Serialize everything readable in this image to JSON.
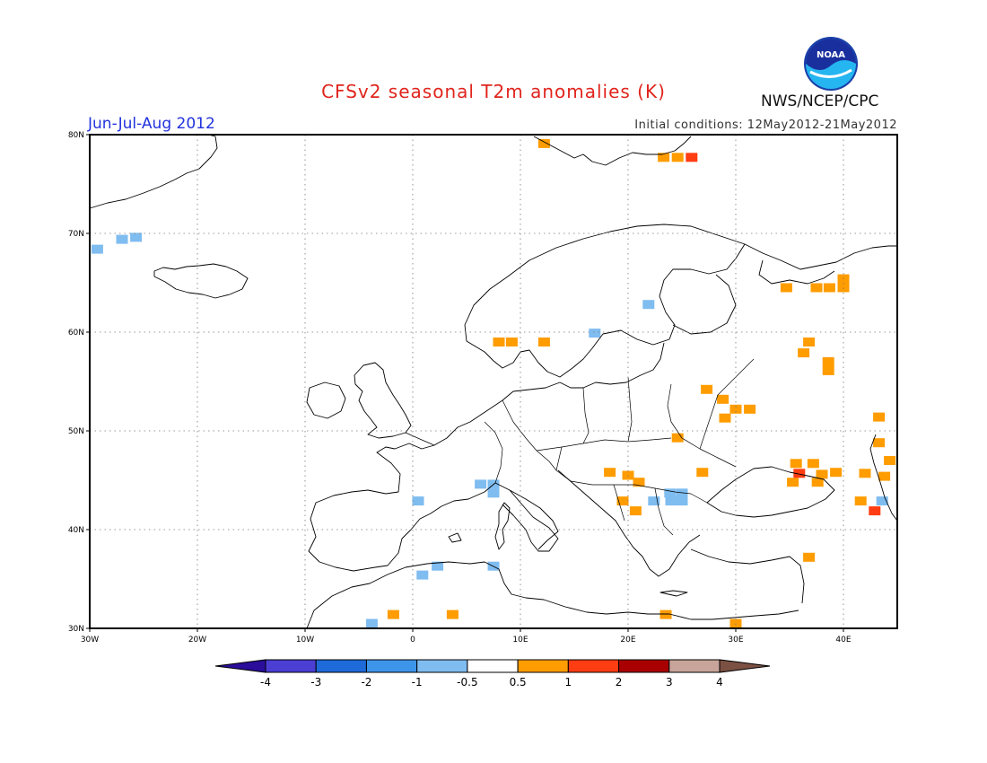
{
  "header": {
    "title": "CFSv2 seasonal T2m anomalies (K)",
    "period": "Jun-Jul-Aug 2012",
    "initial_conditions": "Initial conditions: 12May2012-21May2012",
    "agency": "NWS/NCEP/CPC"
  },
  "logo": {
    "text": "NOAA",
    "icon": "noaa-logo"
  },
  "map": {
    "lon_range": [
      -30,
      45
    ],
    "lat_range": [
      30,
      80
    ],
    "lon_ticks": [
      {
        "value": -30,
        "label": "30W"
      },
      {
        "value": -20,
        "label": "20W"
      },
      {
        "value": -10,
        "label": "10W"
      },
      {
        "value": 0,
        "label": "0"
      },
      {
        "value": 10,
        "label": "10E"
      },
      {
        "value": 20,
        "label": "20E"
      },
      {
        "value": 30,
        "label": "30E"
      },
      {
        "value": 40,
        "label": "40E"
      }
    ],
    "lat_ticks": [
      {
        "value": 30,
        "label": "30N"
      },
      {
        "value": 40,
        "label": "40N"
      },
      {
        "value": 50,
        "label": "50N"
      },
      {
        "value": 60,
        "label": "60N"
      },
      {
        "value": 70,
        "label": "70N"
      },
      {
        "value": 80,
        "label": "80N"
      }
    ],
    "grid": true,
    "anomaly_cells": [
      {
        "lon": -29.3,
        "lat": 68.4,
        "cat": "-1"
      },
      {
        "lon": -27.0,
        "lat": 69.4,
        "cat": "-1"
      },
      {
        "lon": -25.7,
        "lat": 69.6,
        "cat": "-1"
      },
      {
        "lon": 12.2,
        "lat": 79.1,
        "cat": "0.5"
      },
      {
        "lon": 23.3,
        "lat": 77.7,
        "cat": "0.5"
      },
      {
        "lon": 24.6,
        "lat": 77.7,
        "cat": "0.5"
      },
      {
        "lon": 25.9,
        "lat": 77.7,
        "cat": "1"
      },
      {
        "lon": 21.9,
        "lat": 62.8,
        "cat": "-1"
      },
      {
        "lon": 16.9,
        "lat": 59.9,
        "cat": "-1"
      },
      {
        "lon": 8.0,
        "lat": 59.0,
        "cat": "0.5"
      },
      {
        "lon": 9.2,
        "lat": 59.0,
        "cat": "0.5"
      },
      {
        "lon": 12.2,
        "lat": 59.0,
        "cat": "0.5"
      },
      {
        "lon": 34.7,
        "lat": 64.5,
        "cat": "0.5"
      },
      {
        "lon": 37.5,
        "lat": 64.5,
        "cat": "0.5"
      },
      {
        "lon": 38.7,
        "lat": 64.5,
        "cat": "0.5"
      },
      {
        "lon": 40.0,
        "lat": 65.4,
        "cat": "0.5"
      },
      {
        "lon": 40.0,
        "lat": 64.5,
        "cat": "0.5"
      },
      {
        "lon": 36.8,
        "lat": 59.0,
        "cat": "0.5"
      },
      {
        "lon": 36.3,
        "lat": 57.9,
        "cat": "0.5"
      },
      {
        "lon": 38.6,
        "lat": 57.0,
        "cat": "0.5"
      },
      {
        "lon": 38.6,
        "lat": 56.1,
        "cat": "0.5"
      },
      {
        "lon": 27.3,
        "lat": 54.2,
        "cat": "0.5"
      },
      {
        "lon": 28.8,
        "lat": 53.2,
        "cat": "0.5"
      },
      {
        "lon": 30.0,
        "lat": 52.2,
        "cat": "0.5"
      },
      {
        "lon": 31.3,
        "lat": 52.2,
        "cat": "0.5"
      },
      {
        "lon": 29.0,
        "lat": 51.3,
        "cat": "0.5"
      },
      {
        "lon": 43.3,
        "lat": 51.4,
        "cat": "0.5"
      },
      {
        "lon": 43.3,
        "lat": 48.8,
        "cat": "0.5"
      },
      {
        "lon": 44.3,
        "lat": 47.0,
        "cat": "0.5"
      },
      {
        "lon": 24.6,
        "lat": 49.3,
        "cat": "0.5"
      },
      {
        "lon": 18.3,
        "lat": 45.8,
        "cat": "0.5"
      },
      {
        "lon": 20.0,
        "lat": 45.5,
        "cat": "0.5"
      },
      {
        "lon": 21.0,
        "lat": 44.8,
        "cat": "0.5"
      },
      {
        "lon": 26.9,
        "lat": 45.8,
        "cat": "0.5"
      },
      {
        "lon": 19.5,
        "lat": 42.9,
        "cat": "0.5"
      },
      {
        "lon": 20.7,
        "lat": 41.9,
        "cat": "0.5"
      },
      {
        "lon": 35.6,
        "lat": 46.7,
        "cat": "0.5"
      },
      {
        "lon": 37.2,
        "lat": 46.7,
        "cat": "0.5"
      },
      {
        "lon": 35.3,
        "lat": 44.8,
        "cat": "0.5"
      },
      {
        "lon": 35.9,
        "lat": 45.7,
        "cat": "1"
      },
      {
        "lon": 38.0,
        "lat": 45.6,
        "cat": "0.5"
      },
      {
        "lon": 37.6,
        "lat": 44.8,
        "cat": "0.5"
      },
      {
        "lon": 39.3,
        "lat": 45.8,
        "cat": "0.5"
      },
      {
        "lon": 42.0,
        "lat": 45.7,
        "cat": "0.5"
      },
      {
        "lon": 43.8,
        "lat": 45.4,
        "cat": "0.5"
      },
      {
        "lon": 41.6,
        "lat": 42.9,
        "cat": "0.5"
      },
      {
        "lon": 42.9,
        "lat": 41.9,
        "cat": "1"
      },
      {
        "lon": 43.6,
        "lat": 42.9,
        "cat": "-1"
      },
      {
        "lon": 23.9,
        "lat": 43.7,
        "cat": "-1"
      },
      {
        "lon": 25.0,
        "lat": 43.7,
        "cat": "-1"
      },
      {
        "lon": 22.4,
        "lat": 42.9,
        "cat": "-1"
      },
      {
        "lon": 24.0,
        "lat": 42.9,
        "cat": "-1"
      },
      {
        "lon": 25.0,
        "lat": 42.9,
        "cat": "-1"
      },
      {
        "lon": 36.8,
        "lat": 37.2,
        "cat": "0.5"
      },
      {
        "lon": 23.5,
        "lat": 31.4,
        "cat": "0.5"
      },
      {
        "lon": 30.0,
        "lat": 30.5,
        "cat": "0.5"
      },
      {
        "lon": 0.5,
        "lat": 42.9,
        "cat": "-1"
      },
      {
        "lon": 6.3,
        "lat": 44.6,
        "cat": "-1"
      },
      {
        "lon": 7.5,
        "lat": 44.6,
        "cat": "-1"
      },
      {
        "lon": 7.5,
        "lat": 43.7,
        "cat": "-1"
      },
      {
        "lon": 2.3,
        "lat": 36.3,
        "cat": "-1"
      },
      {
        "lon": 0.9,
        "lat": 35.4,
        "cat": "-1"
      },
      {
        "lon": 7.5,
        "lat": 36.3,
        "cat": "-1"
      },
      {
        "lon": -1.8,
        "lat": 31.4,
        "cat": "0.5"
      },
      {
        "lon": 3.7,
        "lat": 31.4,
        "cat": "0.5"
      },
      {
        "lon": -3.8,
        "lat": 30.5,
        "cat": "-1"
      }
    ]
  },
  "colorbar": {
    "boundaries": [
      "-4",
      "-3",
      "-2",
      "-1",
      "-0.5",
      "0.5",
      "1",
      "2",
      "3",
      "4"
    ],
    "colors": [
      "#2a0d9a",
      "#4b3ed3",
      "#1e6ad8",
      "#3d95ea",
      "#7fbcf0",
      "#ffffff",
      "#ff9c00",
      "#ff3d12",
      "#a80000",
      "#c8a49a",
      "#7b5143"
    ]
  },
  "anomaly_colors": {
    "-1": "#7fbcf0",
    "0.5": "#ff9c00",
    "1": "#ff3d12"
  }
}
